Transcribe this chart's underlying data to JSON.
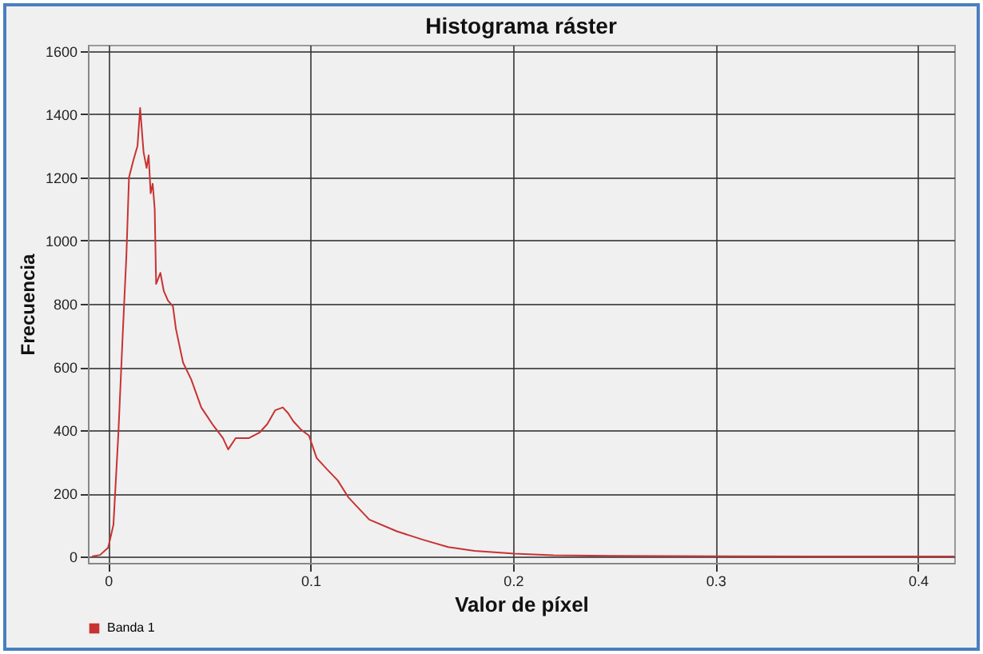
{
  "chart_data": {
    "type": "line",
    "title": "Histograma ráster",
    "xlabel": "Valor de píxel",
    "ylabel": "Frecuencia",
    "x": [
      -0.008,
      -0.004,
      0,
      0.0026,
      0.005,
      0.0072,
      0.009,
      0.0103,
      0.0124,
      0.0145,
      0.0158,
      0.0175,
      0.019,
      0.02,
      0.021,
      0.022,
      0.023,
      0.0237,
      0.0258,
      0.0275,
      0.0296,
      0.032,
      0.0335,
      0.037,
      0.041,
      0.046,
      0.0515,
      0.0567,
      0.0593,
      0.063,
      0.0696,
      0.0747,
      0.0786,
      0.0825,
      0.0863,
      0.0889,
      0.0915,
      0.0954,
      0.0992,
      0.103,
      0.108,
      0.1134,
      0.1186,
      0.1237,
      0.129,
      0.1426,
      0.1556,
      0.168,
      0.181,
      0.2008,
      0.22,
      0.25,
      0.3,
      0.35,
      0.418
    ],
    "series": [
      {
        "name": "Banda 1",
        "color": "#c83232",
        "values": [
          0,
          5,
          28,
          100,
          383,
          703,
          951,
          1200,
          1253,
          1300,
          1420,
          1280,
          1230,
          1270,
          1150,
          1180,
          1100,
          863,
          898,
          840,
          810,
          792,
          720,
          614,
          561,
          472,
          419,
          375,
          339,
          375,
          375,
          392,
          419,
          463,
          472,
          454,
          428,
          401,
          383,
          312,
          277,
          241,
          188,
          153,
          117,
          80,
          53,
          30,
          18,
          9,
          4,
          2,
          1,
          0,
          0
        ]
      }
    ],
    "xlim": [
      -0.01,
      0.418
    ],
    "xticks": [
      0,
      0.1,
      0.2,
      0.3,
      0.4
    ],
    "ylim": [
      -20,
      1620
    ],
    "yticks": [
      0,
      200,
      400,
      600,
      800,
      1000,
      1200,
      1400,
      1600
    ],
    "grid": true,
    "legend": "bottom"
  }
}
